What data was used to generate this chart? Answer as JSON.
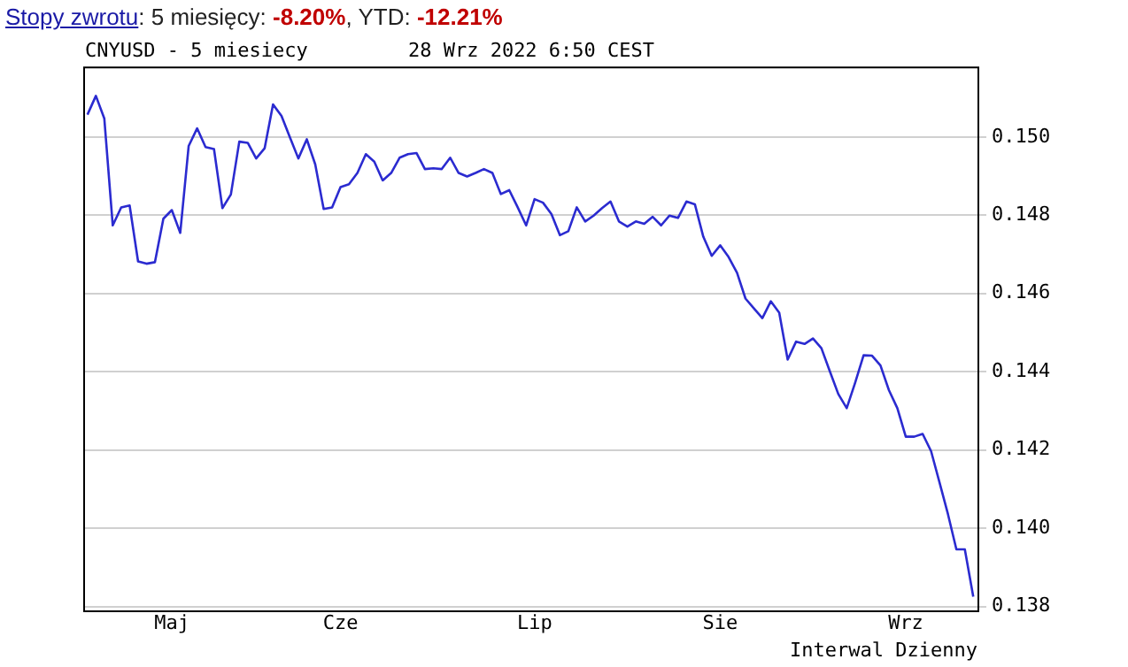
{
  "chart_data": {
    "type": "line",
    "title": "Stopy zwrotu: 5 miesięcy: -8.20%, YTD: -12.21%",
    "subtitle": "CNYUSD - 5 miesiecy",
    "annotations": [
      "28 Wrz 2022 6:50 CEST",
      "Interwal Dzienny"
    ],
    "categories": [
      null,
      null,
      null,
      null,
      null,
      null,
      null,
      null,
      null,
      null,
      "Maj",
      null,
      null,
      null,
      null,
      null,
      null,
      null,
      null,
      null,
      null,
      null,
      null,
      null,
      null,
      null,
      null,
      null,
      null,
      null,
      "Cze",
      null,
      null,
      null,
      null,
      null,
      null,
      null,
      null,
      null,
      null,
      null,
      null,
      null,
      null,
      null,
      null,
      null,
      null,
      null,
      null,
      null,
      null,
      "Lip",
      null,
      null,
      null,
      null,
      null,
      null,
      null,
      null,
      null,
      null,
      null,
      null,
      null,
      null,
      null,
      null,
      null,
      null,
      null,
      null,
      null,
      "Sie",
      null,
      null,
      null,
      null,
      null,
      null,
      null,
      null,
      null,
      null,
      null,
      null,
      null,
      null,
      null,
      null,
      null,
      null,
      null,
      null,
      null,
      "Wrz",
      null,
      null,
      null,
      null,
      null,
      null,
      null,
      null
    ],
    "series": [
      {
        "color": "#2b2bd0",
        "values": [
          0.15057,
          0.15105,
          0.15047,
          0.14774,
          0.1482,
          0.14825,
          0.14682,
          0.14676,
          0.1468,
          0.14791,
          0.14813,
          0.14755,
          0.14977,
          0.15022,
          0.14974,
          0.14969,
          0.14818,
          0.14853,
          0.14988,
          0.14985,
          0.14945,
          0.14971,
          0.15083,
          0.15054,
          0.14999,
          0.14945,
          0.14994,
          0.1493,
          0.14816,
          0.1482,
          0.14872,
          0.14879,
          0.14908,
          0.14956,
          0.14937,
          0.14889,
          0.14908,
          0.14947,
          0.14956,
          0.14959,
          0.14918,
          0.1492,
          0.14918,
          0.14947,
          0.14908,
          0.14899,
          0.14908,
          0.14918,
          0.14908,
          0.14854,
          0.14864,
          0.1482,
          0.14774,
          0.14841,
          0.14832,
          0.14803,
          0.14749,
          0.14759,
          0.1482,
          0.14784,
          0.14799,
          0.14818,
          0.14835,
          0.14784,
          0.14771,
          0.14784,
          0.14778,
          0.14796,
          0.14774,
          0.14799,
          0.14793,
          0.14835,
          0.14828,
          0.14745,
          0.14696,
          0.14723,
          0.14693,
          0.14653,
          0.14587,
          0.14562,
          0.14537,
          0.1458,
          0.14551,
          0.14431,
          0.14477,
          0.14471,
          0.14485,
          0.1446,
          0.14401,
          0.14343,
          0.14307,
          0.14372,
          0.14442,
          0.14441,
          0.14416,
          0.14353,
          0.14307,
          0.14234,
          0.14234,
          0.14241,
          0.14197,
          0.14117,
          0.14036,
          0.13946,
          0.13946,
          0.13825
        ]
      }
    ],
    "ylim": [
      0.1379,
      0.1518
    ],
    "yticks": [
      {
        "value": 0.138,
        "label": "0.138"
      },
      {
        "value": 0.14,
        "label": "0.140"
      },
      {
        "value": 0.142,
        "label": "0.142"
      },
      {
        "value": 0.144,
        "label": "0.144"
      },
      {
        "value": 0.146,
        "label": "0.146"
      },
      {
        "value": 0.148,
        "label": "0.148"
      },
      {
        "value": 0.15,
        "label": "0.150"
      }
    ],
    "grid": "y",
    "marker": "none",
    "line_style": "solid"
  }
}
